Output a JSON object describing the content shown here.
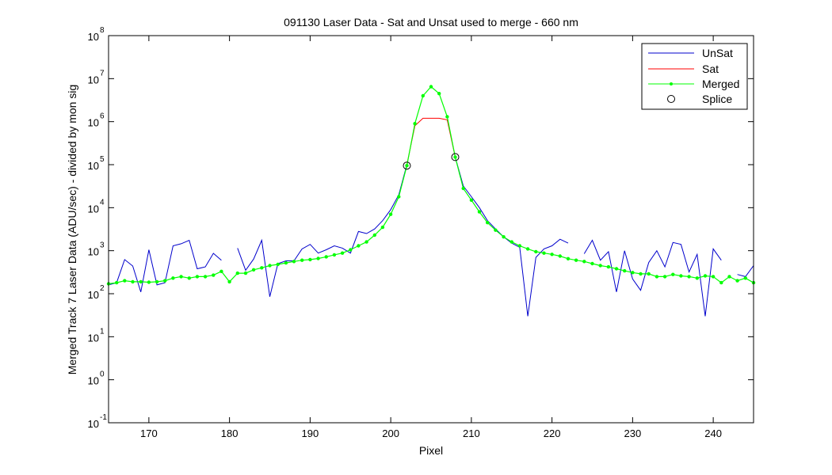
{
  "chart_data": {
    "type": "line",
    "title": "091130 Laser Data - Sat and Unsat used to merge  - 660 nm",
    "xlabel": "Pixel",
    "ylabel": "Merged Track 7 Laser Data (ADU/sec) - divided by mon sig",
    "xlim": [
      165,
      245
    ],
    "ylim": [
      0.1,
      100000000
    ],
    "yscale": "log",
    "x_ticks": [
      170,
      180,
      190,
      200,
      210,
      220,
      230,
      240
    ],
    "y_tick_exponents": [
      -1,
      0,
      1,
      2,
      3,
      4,
      5,
      6,
      7,
      8
    ],
    "legend_position": "top-right",
    "colors": {
      "unsat": "#0000cc",
      "sat": "#ff0000",
      "merged": "#00ff00",
      "splice": "#000000"
    },
    "series": [
      {
        "name": "UnSat",
        "segments": [
          [
            [
              165,
              160
            ],
            [
              166,
              180
            ],
            [
              167,
              620
            ],
            [
              168,
              440
            ],
            [
              169,
              110
            ],
            [
              170,
              1050
            ],
            [
              171,
              160
            ],
            [
              172,
              180
            ],
            [
              173,
              1300
            ],
            [
              174,
              1450
            ],
            [
              175,
              1750
            ],
            [
              176,
              380
            ],
            [
              177,
              420
            ],
            [
              178,
              870
            ],
            [
              179,
              600
            ]
          ],
          [
            [
              181,
              1150
            ],
            [
              182,
              350
            ],
            [
              183,
              640
            ],
            [
              184,
              1750
            ],
            [
              185,
              85
            ],
            [
              186,
              500
            ],
            [
              187,
              580
            ],
            [
              188,
              580
            ],
            [
              189,
              1100
            ],
            [
              190,
              1400
            ],
            [
              191,
              880
            ],
            [
              192,
              1050
            ],
            [
              193,
              1300
            ],
            [
              194,
              1150
            ],
            [
              195,
              880
            ],
            [
              196,
              2800
            ],
            [
              197,
              2500
            ],
            [
              198,
              3200
            ],
            [
              199,
              5000
            ],
            [
              200,
              9000
            ],
            [
              201,
              20000
            ],
            [
              202,
              100000
            ]
          ],
          [
            [
              208,
              150000
            ],
            [
              209,
              32000
            ],
            [
              210,
              18000
            ],
            [
              211,
              10000
            ],
            [
              212,
              5000
            ],
            [
              213,
              3200
            ],
            [
              214,
              2100
            ],
            [
              215,
              1500
            ],
            [
              216,
              1200
            ],
            [
              217,
              30
            ],
            [
              218,
              700
            ],
            [
              219,
              1100
            ],
            [
              220,
              1300
            ],
            [
              221,
              1850
            ],
            [
              222,
              1500
            ]
          ],
          [
            [
              224,
              850
            ],
            [
              225,
              1750
            ],
            [
              226,
              600
            ],
            [
              227,
              950
            ],
            [
              228,
              110
            ],
            [
              229,
              1000
            ],
            [
              230,
              220
            ],
            [
              231,
              120
            ],
            [
              232,
              530
            ],
            [
              233,
              1000
            ],
            [
              234,
              420
            ],
            [
              235,
              1550
            ],
            [
              236,
              1400
            ],
            [
              237,
              320
            ],
            [
              238,
              820
            ],
            [
              239,
              30
            ],
            [
              240,
              1100
            ],
            [
              241,
              600
            ]
          ],
          [
            [
              243,
              280
            ],
            [
              244,
              250
            ],
            [
              245,
              450
            ]
          ]
        ]
      },
      {
        "name": "Sat",
        "points": [
          [
            202,
            100000
          ],
          [
            203,
            800000
          ],
          [
            204,
            1200000
          ],
          [
            205,
            1200000
          ],
          [
            206,
            1200000
          ],
          [
            207,
            1100000
          ],
          [
            208,
            150000
          ]
        ]
      },
      {
        "name": "Merged",
        "points": [
          [
            165,
            170
          ],
          [
            166,
            180
          ],
          [
            167,
            200
          ],
          [
            168,
            190
          ],
          [
            169,
            190
          ],
          [
            170,
            185
          ],
          [
            171,
            190
          ],
          [
            172,
            200
          ],
          [
            173,
            230
          ],
          [
            174,
            250
          ],
          [
            175,
            230
          ],
          [
            176,
            250
          ],
          [
            177,
            250
          ],
          [
            178,
            270
          ],
          [
            179,
            330
          ],
          [
            180,
            190
          ],
          [
            181,
            300
          ],
          [
            182,
            300
          ],
          [
            183,
            360
          ],
          [
            184,
            400
          ],
          [
            185,
            450
          ],
          [
            186,
            480
          ],
          [
            187,
            520
          ],
          [
            188,
            560
          ],
          [
            189,
            600
          ],
          [
            190,
            620
          ],
          [
            191,
            660
          ],
          [
            192,
            720
          ],
          [
            193,
            800
          ],
          [
            194,
            880
          ],
          [
            195,
            1050
          ],
          [
            196,
            1300
          ],
          [
            197,
            1600
          ],
          [
            198,
            2300
          ],
          [
            199,
            3500
          ],
          [
            200,
            7000
          ],
          [
            201,
            18000
          ],
          [
            202,
            95000
          ],
          [
            203,
            900000
          ],
          [
            204,
            4000000
          ],
          [
            205,
            6500000
          ],
          [
            206,
            4500000
          ],
          [
            207,
            1300000
          ],
          [
            208,
            150000
          ],
          [
            209,
            28000
          ],
          [
            210,
            15000
          ],
          [
            211,
            8000
          ],
          [
            212,
            4500
          ],
          [
            213,
            3000
          ],
          [
            214,
            2100
          ],
          [
            215,
            1600
          ],
          [
            216,
            1300
          ],
          [
            217,
            1100
          ],
          [
            218,
            950
          ],
          [
            219,
            880
          ],
          [
            220,
            820
          ],
          [
            221,
            750
          ],
          [
            222,
            650
          ],
          [
            223,
            600
          ],
          [
            224,
            560
          ],
          [
            225,
            500
          ],
          [
            226,
            450
          ],
          [
            227,
            420
          ],
          [
            228,
            380
          ],
          [
            229,
            340
          ],
          [
            230,
            310
          ],
          [
            231,
            290
          ],
          [
            232,
            290
          ],
          [
            233,
            250
          ],
          [
            234,
            250
          ],
          [
            235,
            280
          ],
          [
            236,
            260
          ],
          [
            237,
            250
          ],
          [
            238,
            230
          ],
          [
            239,
            260
          ],
          [
            240,
            250
          ],
          [
            241,
            180
          ],
          [
            242,
            250
          ],
          [
            243,
            200
          ],
          [
            244,
            230
          ],
          [
            245,
            180
          ]
        ]
      },
      {
        "name": "Splice",
        "points": [
          [
            202,
            95000
          ],
          [
            208,
            150000
          ]
        ]
      }
    ]
  }
}
